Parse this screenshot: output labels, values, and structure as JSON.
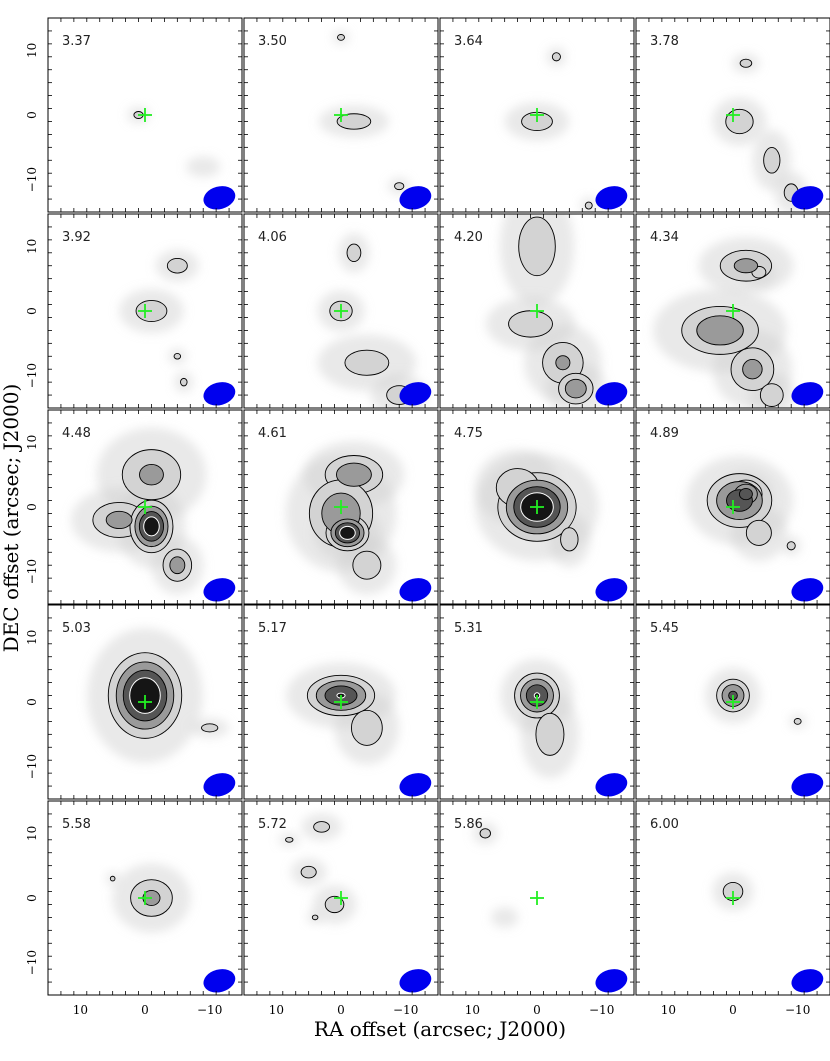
{
  "chart_data": {
    "type": "heatmap",
    "xlabel": "RA offset (arcsec; J2000)",
    "ylabel": "DEC offset (arcsec; J2000)",
    "xlim": [
      15,
      -15
    ],
    "ylim": [
      -15,
      15
    ],
    "x_ticks": [
      10,
      0,
      -10
    ],
    "y_ticks": [
      10,
      0,
      -10
    ],
    "x_tick_labels": [
      "10",
      "0",
      "−10"
    ],
    "y_tick_labels": [
      "10",
      "0",
      "−10"
    ],
    "colormap": "greyscale",
    "marker": {
      "ra": 0,
      "dec": 0,
      "symbol": "+",
      "color": "#22ee22"
    },
    "beam": {
      "ra": -11.5,
      "dec": -12.8,
      "major_arcsec": 5,
      "minor_arcsec": 3.5,
      "pa_deg": -15,
      "color": "#0000ee"
    },
    "panels": [
      {
        "label": "3.37",
        "blobs": [
          {
            "ra": 1,
            "dec": 0,
            "sra": 0.8,
            "sdec": 0.6,
            "peak": 1.5
          },
          {
            "ra": -9,
            "dec": -8,
            "sra": 2.5,
            "sdec": 1.5,
            "peak": 0.5
          }
        ]
      },
      {
        "label": "3.50",
        "blobs": [
          {
            "ra": -2,
            "dec": -1,
            "sra": 2.4,
            "sdec": 1.1,
            "peak": 1.8
          },
          {
            "ra": 0,
            "dec": 12,
            "sra": 0.6,
            "sdec": 0.5,
            "peak": 1.5
          },
          {
            "ra": -9,
            "dec": -11,
            "sra": 0.8,
            "sdec": 0.6,
            "peak": 1.5
          }
        ]
      },
      {
        "label": "3.64",
        "blobs": [
          {
            "ra": 0,
            "dec": -1,
            "sra": 2.2,
            "sdec": 1.3,
            "peak": 1.8
          },
          {
            "ra": -3,
            "dec": 9,
            "sra": 0.7,
            "sdec": 0.7,
            "peak": 1.5
          },
          {
            "ra": -8,
            "dec": -14,
            "sra": 0.6,
            "sdec": 0.6,
            "peak": 1.5
          }
        ]
      },
      {
        "label": "3.78",
        "blobs": [
          {
            "ra": -1,
            "dec": -1,
            "sra": 1.8,
            "sdec": 1.6,
            "peak": 2
          },
          {
            "ra": -2,
            "dec": 8,
            "sra": 1,
            "sdec": 0.7,
            "peak": 1.5
          },
          {
            "ra": -6,
            "dec": -7,
            "sra": 1.4,
            "sdec": 2.2,
            "peak": 1.5
          },
          {
            "ra": -9,
            "dec": -12,
            "sra": 1.2,
            "sdec": 1.5,
            "peak": 1.5
          }
        ]
      },
      {
        "label": "3.92",
        "blobs": [
          {
            "ra": -1,
            "dec": 0,
            "sra": 2.2,
            "sdec": 1.5,
            "peak": 1.8
          },
          {
            "ra": -5,
            "dec": 7,
            "sra": 1.5,
            "sdec": 1.1,
            "peak": 1.7
          },
          {
            "ra": -5,
            "dec": -7,
            "sra": 0.7,
            "sdec": 0.6,
            "peak": 1.3
          },
          {
            "ra": -6,
            "dec": -11,
            "sra": 0.7,
            "sdec": 0.8,
            "peak": 1.3
          }
        ]
      },
      {
        "label": "4.06",
        "blobs": [
          {
            "ra": 0,
            "dec": 0,
            "sra": 1.6,
            "sdec": 1.4,
            "peak": 1.8
          },
          {
            "ra": -2,
            "dec": 9,
            "sra": 1.1,
            "sdec": 1.4,
            "peak": 1.6
          },
          {
            "ra": -4,
            "dec": -8,
            "sra": 3.5,
            "sdec": 2,
            "peak": 1.6
          },
          {
            "ra": -9,
            "dec": -13,
            "sra": 2,
            "sdec": 1.5,
            "peak": 1.6
          }
        ]
      },
      {
        "label": "4.20",
        "blobs": [
          {
            "ra": 0,
            "dec": 10,
            "sra": 2.5,
            "sdec": 4,
            "peak": 1.9
          },
          {
            "ra": 1,
            "dec": -2,
            "sra": 3,
            "sdec": 1.8,
            "peak": 1.9
          },
          {
            "ra": -4,
            "dec": -8,
            "sra": 2.5,
            "sdec": 2.5,
            "peak": 2.2
          },
          {
            "ra": -6,
            "dec": -12,
            "sra": 1.8,
            "sdec": 1.6,
            "peak": 3
          }
        ]
      },
      {
        "label": "4.34",
        "blobs": [
          {
            "ra": -2,
            "dec": 7,
            "sra": 3,
            "sdec": 1.8,
            "peak": 2.4
          },
          {
            "ra": -4,
            "dec": 6,
            "sra": 1.2,
            "sdec": 1,
            "peak": 1.5
          },
          {
            "ra": 2,
            "dec": -3,
            "sra": 4,
            "sdec": 2.5,
            "peak": 3
          },
          {
            "ra": -3,
            "dec": -9,
            "sra": 2.5,
            "sdec": 2.5,
            "peak": 2.4
          },
          {
            "ra": -6,
            "dec": -13,
            "sra": 1.5,
            "sdec": 1.5,
            "peak": 2
          }
        ]
      },
      {
        "label": "4.48",
        "blobs": [
          {
            "ra": -1,
            "dec": 5,
            "sra": 3.5,
            "sdec": 3,
            "peak": 2.3
          },
          {
            "ra": 4,
            "dec": -2,
            "sra": 3,
            "sdec": 2,
            "peak": 2.5
          },
          {
            "ra": -1,
            "dec": -3,
            "sra": 1.8,
            "sdec": 2.2,
            "peak": 5.5
          },
          {
            "ra": -5,
            "dec": -9,
            "sra": 1.6,
            "sdec": 1.8,
            "peak": 2.6
          }
        ]
      },
      {
        "label": "4.61",
        "blobs": [
          {
            "ra": -2,
            "dec": 5,
            "sra": 3,
            "sdec": 2,
            "peak": 3
          },
          {
            "ra": 0,
            "dec": -1,
            "sra": 3.3,
            "sdec": 3.5,
            "peak": 3
          },
          {
            "ra": -1,
            "dec": -4,
            "sra": 1.8,
            "sdec": 1.5,
            "peak": 5.5
          },
          {
            "ra": -4,
            "dec": -9,
            "sra": 2,
            "sdec": 2,
            "peak": 1.8
          }
        ]
      },
      {
        "label": "4.75",
        "blobs": [
          {
            "ra": 0,
            "dec": 0,
            "sra": 3.2,
            "sdec": 2.8,
            "peak": 6
          },
          {
            "ra": 3,
            "dec": 3,
            "sra": 2.8,
            "sdec": 2.5,
            "peak": 2
          },
          {
            "ra": -5,
            "dec": -5,
            "sra": 1.5,
            "sdec": 2,
            "peak": 1.5
          }
        ]
      },
      {
        "label": "4.89",
        "blobs": [
          {
            "ra": -1,
            "dec": 1,
            "sra": 3,
            "sdec": 2.5,
            "peak": 4
          },
          {
            "ra": -2,
            "dec": 2,
            "sra": 1.5,
            "sdec": 1.3,
            "peak": 4
          },
          {
            "ra": -4,
            "dec": -4,
            "sra": 2,
            "sdec": 2,
            "peak": 1.6
          },
          {
            "ra": -9,
            "dec": -6,
            "sra": 0.7,
            "sdec": 0.7,
            "peak": 1.5
          }
        ]
      },
      {
        "label": "5.03",
        "blobs": [
          {
            "ra": 0,
            "dec": 1,
            "sra": 3,
            "sdec": 3.5,
            "peak": 6
          },
          {
            "ra": -1,
            "dec": 1,
            "sra": 1.2,
            "sdec": 1.2,
            "peak": 4
          },
          {
            "ra": -10,
            "dec": -4,
            "sra": 1.4,
            "sdec": 0.7,
            "peak": 1.5
          }
        ]
      },
      {
        "label": "5.17",
        "blobs": [
          {
            "ra": 0,
            "dec": 1,
            "sra": 3,
            "sdec": 1.8,
            "peak": 4.5
          },
          {
            "ra": -4,
            "dec": -4,
            "sra": 2.2,
            "sdec": 2.5,
            "peak": 1.8
          }
        ]
      },
      {
        "label": "5.31",
        "blobs": [
          {
            "ra": 0,
            "dec": 1,
            "sra": 2,
            "sdec": 2,
            "peak": 4.5
          },
          {
            "ra": -2,
            "dec": -5,
            "sra": 2,
            "sdec": 3,
            "peak": 1.8
          }
        ]
      },
      {
        "label": "5.45",
        "blobs": [
          {
            "ra": 0,
            "dec": 1,
            "sra": 1.6,
            "sdec": 1.6,
            "peak": 3.5
          },
          {
            "ra": -10,
            "dec": -3,
            "sra": 0.6,
            "sdec": 0.5,
            "peak": 1.5
          }
        ]
      },
      {
        "label": "5.58",
        "blobs": [
          {
            "ra": -1,
            "dec": 0,
            "sra": 2.5,
            "sdec": 2.2,
            "peak": 2.3
          },
          {
            "ra": 5,
            "dec": 3,
            "sra": 0.5,
            "sdec": 0.5,
            "peak": 1.3
          }
        ]
      },
      {
        "label": "5.72",
        "blobs": [
          {
            "ra": 5,
            "dec": 4,
            "sra": 1.3,
            "sdec": 1,
            "peak": 1.5
          },
          {
            "ra": 8,
            "dec": 9,
            "sra": 0.8,
            "sdec": 0.5,
            "peak": 1.3
          },
          {
            "ra": 3,
            "dec": 11,
            "sra": 1.5,
            "sdec": 1,
            "peak": 1.4
          },
          {
            "ra": 1,
            "dec": -1,
            "sra": 1.6,
            "sdec": 1.4,
            "peak": 1.5
          },
          {
            "ra": 4,
            "dec": -3,
            "sra": 0.6,
            "sdec": 0.5,
            "peak": 1.3
          }
        ]
      },
      {
        "label": "5.86",
        "blobs": [
          {
            "ra": 8,
            "dec": 10,
            "sra": 0.9,
            "sdec": 0.8,
            "peak": 1.5
          },
          {
            "ra": 5,
            "dec": -3,
            "sra": 2,
            "sdec": 1.5,
            "peak": 0.5
          }
        ]
      },
      {
        "label": "6.00",
        "blobs": [
          {
            "ra": 0,
            "dec": 1,
            "sra": 1.4,
            "sdec": 1.3,
            "peak": 1.8
          }
        ]
      }
    ]
  }
}
